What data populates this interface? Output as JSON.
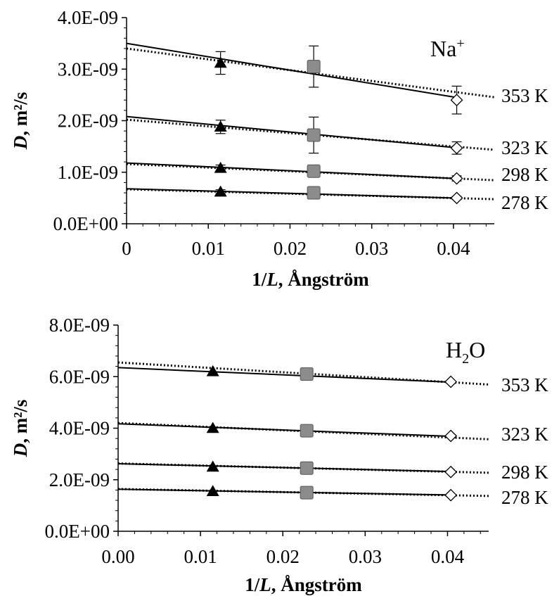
{
  "chart_data": [
    {
      "type": "scatter",
      "panel_label": "Na",
      "panel_label_sup": "+",
      "ylabel_italic": "D",
      "ylabel_rest": ", m²/s",
      "xlabel_pre": "1/",
      "xlabel_italic": "L",
      "xlabel_post": ", Ångström",
      "xlim": [
        0,
        0.045
      ],
      "ylim": [
        0,
        4e-09
      ],
      "xticks": [
        0,
        0.01,
        0.02,
        0.03,
        0.04
      ],
      "xtick_labels": [
        "0",
        "0.01",
        "0.02",
        "0.03",
        "0.04"
      ],
      "yticks": [
        0,
        1e-09,
        2e-09,
        3e-09,
        4e-09
      ],
      "ytick_labels": [
        "0.0E+00",
        "1.0E-09",
        "2.0E-09",
        "3.0E-09",
        "4.0E-09"
      ],
      "grid": false,
      "marker_legend": {
        "triangle": "filled black",
        "square": "gray",
        "diamond": "open"
      },
      "series": [
        {
          "name": "353 K",
          "points": [
            {
              "x": 0.0115,
              "y": 3.12e-09,
              "err": 2.2e-10,
              "marker": "triangle"
            },
            {
              "x": 0.0229,
              "y": 3.05e-09,
              "err": 4e-10,
              "marker": "square"
            },
            {
              "x": 0.0404,
              "y": 2.4e-09,
              "err": 2.7e-10,
              "marker": "diamond"
            }
          ],
          "solid_fit": {
            "intercept": 3.5e-09,
            "slope": -2.6e-08
          },
          "dotted_fit": {
            "intercept": 3.4e-09,
            "slope": -2.1e-08
          }
        },
        {
          "name": "323 K",
          "points": [
            {
              "x": 0.0115,
              "y": 1.88e-09,
              "err": 1.3e-10,
              "marker": "triangle"
            },
            {
              "x": 0.0229,
              "y": 1.72e-09,
              "err": 3.5e-10,
              "marker": "square"
            },
            {
              "x": 0.0404,
              "y": 1.47e-09,
              "err": 1.2e-10,
              "marker": "diamond"
            }
          ],
          "solid_fit": {
            "intercept": 2.08e-09,
            "slope": -1.5e-08
          },
          "dotted_fit": {
            "intercept": 2.02e-09,
            "slope": -1.3e-08
          }
        },
        {
          "name": "298 K",
          "points": [
            {
              "x": 0.0115,
              "y": 1.08e-09,
              "err": 6e-11,
              "marker": "triangle"
            },
            {
              "x": 0.0229,
              "y": 1.02e-09,
              "err": 5e-11,
              "marker": "square"
            },
            {
              "x": 0.0404,
              "y": 8.8e-10,
              "err": 5e-11,
              "marker": "diamond"
            }
          ],
          "solid_fit": {
            "intercept": 1.18e-09,
            "slope": -7.5e-09
          },
          "dotted_fit": {
            "intercept": 1.16e-09,
            "slope": -7e-09
          }
        },
        {
          "name": "278 K",
          "points": [
            {
              "x": 0.0115,
              "y": 6.2e-10,
              "err": 4e-11,
              "marker": "triangle"
            },
            {
              "x": 0.0229,
              "y": 6e-10,
              "err": 3e-11,
              "marker": "square"
            },
            {
              "x": 0.0404,
              "y": 5e-10,
              "err": 3e-11,
              "marker": "diamond"
            }
          ],
          "solid_fit": {
            "intercept": 6.8e-10,
            "slope": -4.5e-09
          },
          "dotted_fit": {
            "intercept": 6.7e-10,
            "slope": -4.3e-09
          }
        }
      ]
    },
    {
      "type": "scatter",
      "panel_label": "H",
      "panel_label_sub": "2",
      "panel_label_post": "O",
      "ylabel_italic": "D",
      "ylabel_rest": ", m²/s",
      "xlabel_pre": "1/",
      "xlabel_italic": "L",
      "xlabel_post": ", Ångström",
      "xlim": [
        0,
        0.045
      ],
      "ylim": [
        0,
        8e-09
      ],
      "xticks": [
        0,
        0.01,
        0.02,
        0.03,
        0.04
      ],
      "xtick_labels": [
        "0.00",
        "0.01",
        "0.02",
        "0.03",
        "0.04"
      ],
      "yticks": [
        0,
        2e-09,
        4e-09,
        6e-09,
        8e-09
      ],
      "ytick_labels": [
        "0.0E+00",
        "2.0E-09",
        "4.0E-09",
        "6.0E-09",
        "8.0E-09"
      ],
      "grid": false,
      "series": [
        {
          "name": "353 K",
          "points": [
            {
              "x": 0.0115,
              "y": 6.2e-09,
              "marker": "triangle"
            },
            {
              "x": 0.0229,
              "y": 6.1e-09,
              "marker": "square"
            },
            {
              "x": 0.0404,
              "y": 5.8e-09,
              "marker": "diamond"
            }
          ],
          "solid_fit": {
            "intercept": 6.35e-09,
            "slope": -1.4e-08
          },
          "dotted_fit": {
            "intercept": 6.55e-09,
            "slope": -1.9e-08
          }
        },
        {
          "name": "323 K",
          "points": [
            {
              "x": 0.0115,
              "y": 4e-09,
              "marker": "triangle"
            },
            {
              "x": 0.0229,
              "y": 3.9e-09,
              "marker": "square"
            },
            {
              "x": 0.0404,
              "y": 3.7e-09,
              "marker": "diamond"
            }
          ],
          "solid_fit": {
            "intercept": 4.17e-09,
            "slope": -1.2e-08
          },
          "dotted_fit": {
            "intercept": 4.2e-09,
            "slope": -1.4e-08
          }
        },
        {
          "name": "298 K",
          "points": [
            {
              "x": 0.0115,
              "y": 2.5e-09,
              "marker": "triangle"
            },
            {
              "x": 0.0229,
              "y": 2.45e-09,
              "marker": "square"
            },
            {
              "x": 0.0404,
              "y": 2.3e-09,
              "marker": "diamond"
            }
          ],
          "solid_fit": {
            "intercept": 2.62e-09,
            "slope": -7.5e-09
          },
          "dotted_fit": {
            "intercept": 2.63e-09,
            "slope": -8e-09
          }
        },
        {
          "name": "278 K",
          "points": [
            {
              "x": 0.0115,
              "y": 1.55e-09,
              "marker": "triangle"
            },
            {
              "x": 0.0229,
              "y": 1.5e-09,
              "marker": "square"
            },
            {
              "x": 0.0404,
              "y": 1.4e-09,
              "marker": "diamond"
            }
          ],
          "solid_fit": {
            "intercept": 1.63e-09,
            "slope": -5.5e-09
          },
          "dotted_fit": {
            "intercept": 1.64e-09,
            "slope": -6e-09
          }
        }
      ]
    }
  ]
}
